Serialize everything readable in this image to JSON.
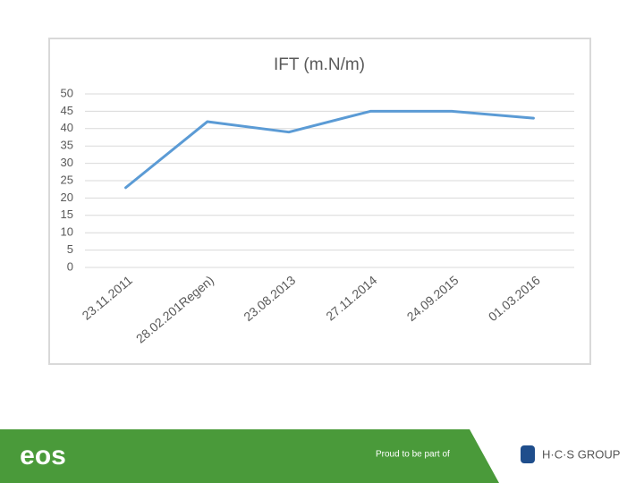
{
  "chart_data": {
    "type": "line",
    "title": "IFT (m.N/m)",
    "categories": [
      "23.11.2011",
      "28.02.201Regen)",
      "23.08.2013",
      "27.11.2014",
      "24.09.2015",
      "01.03.2016"
    ],
    "series": [
      {
        "name": "IFT",
        "color": "#5b9bd5",
        "values": [
          23,
          42,
          39,
          45,
          45,
          43
        ]
      }
    ],
    "ylim": [
      0,
      50
    ],
    "yticks": [
      0,
      5,
      10,
      15,
      20,
      25,
      30,
      35,
      40,
      45,
      50
    ],
    "grid": true
  },
  "footer": {
    "brand": "eos",
    "tagline": "Proud to be part of",
    "partner": "H·C·S GROUP"
  }
}
